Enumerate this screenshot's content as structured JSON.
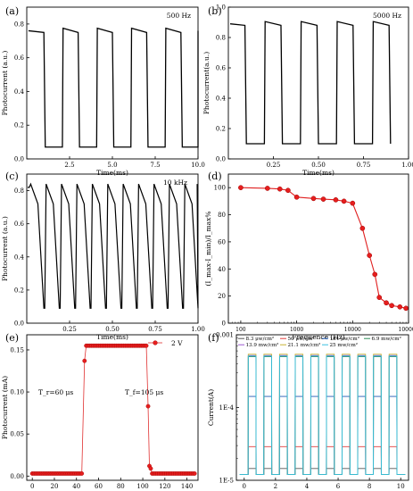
{
  "chart_data": [
    {
      "panel": "(a)",
      "type": "line",
      "annotation": "500  Hz",
      "xlabel": "Time(ms)",
      "ylabel": "Photocurrent (a.u.)",
      "xlim": [
        0,
        10
      ],
      "ylim": [
        0,
        0.9
      ],
      "xticks": [
        "2.5",
        "5.0",
        "7.5",
        "10.0"
      ],
      "yticks": [
        "0.0",
        "0.2",
        "0.4",
        "0.6",
        "0.8"
      ],
      "square_wave": {
        "high": 0.76,
        "low": 0.07,
        "on_intervals": [
          [
            0,
            1.08
          ],
          [
            2.08,
            3.08
          ],
          [
            4.08,
            5.08
          ],
          [
            6.08,
            7.08
          ],
          [
            8.08,
            9.08
          ],
          [
            10.08,
            10
          ]
        ]
      }
    },
    {
      "panel": "(b)",
      "type": "line",
      "annotation": "5000  Hz",
      "xlabel": "Time(ms)",
      "ylabel": "Photocurrent(a.u.)",
      "xlim": [
        0,
        1
      ],
      "ylim": [
        0,
        1.0
      ],
      "xticks": [
        "0.25",
        "0.50",
        "0.75",
        "1.00"
      ],
      "yticks": [
        "0.0",
        "0.2",
        "0.4",
        "0.6",
        "0.8",
        "1.0"
      ],
      "square_wave": {
        "high": 0.89,
        "low": 0.1,
        "on_intervals": [
          [
            0.015,
            0.1
          ],
          [
            0.2,
            0.3
          ],
          [
            0.4,
            0.5
          ],
          [
            0.6,
            0.7
          ],
          [
            0.8,
            0.9
          ]
        ]
      }
    },
    {
      "panel": "(c)",
      "type": "line",
      "annotation": "10  kHz",
      "xlabel": "Time(ms)",
      "ylabel": "Photocurrent (a.u.)",
      "xlim": [
        0,
        1
      ],
      "ylim": [
        0,
        0.9
      ],
      "xticks": [
        "0.25",
        "0.50",
        "0.75",
        "1.00"
      ],
      "yticks": [
        "0.0",
        "0.2",
        "0.4",
        "0.6",
        "0.8"
      ],
      "pulse_starts": [
        0.015,
        0.105,
        0.195,
        0.285,
        0.375,
        0.465,
        0.555,
        0.645,
        0.735,
        0.825,
        0.915
      ],
      "pulse_peak": 0.84,
      "pulse_high_end": 0.72,
      "pulse_low": 0.09
    },
    {
      "panel": "(d)",
      "type": "scatter",
      "xlabel": "Frequence  (Hz)",
      "ylabel": "(I_max-I_min)/I_max%",
      "xscale": "log",
      "xlim": [
        60,
        100000
      ],
      "ylim": [
        0,
        110
      ],
      "xticks": [
        "100",
        "1000",
        "10000",
        "100000"
      ],
      "yticks": [
        "0",
        "20",
        "40",
        "60",
        "80",
        "100"
      ],
      "x": [
        100,
        300,
        500,
        700,
        1000,
        2000,
        3000,
        5000,
        7000,
        10000,
        15000,
        20000,
        25000,
        30000,
        40000,
        50000,
        70000,
        90000
      ],
      "y": [
        100,
        99.5,
        99,
        98,
        93,
        92,
        91.5,
        91,
        90,
        88.5,
        70,
        50,
        36,
        19,
        15,
        13,
        12,
        11
      ]
    },
    {
      "panel": "(e)",
      "type": "scatter",
      "xlabel": "Time  (ms)",
      "ylabel": "Photocurrent  (mA)",
      "legend": "2  V",
      "legend_position": "top-right",
      "xlim": [
        -5,
        150
      ],
      "ylim": [
        -0.005,
        0.168
      ],
      "xticks": [
        "0",
        "20",
        "40",
        "60",
        "80",
        "100",
        "120",
        "140"
      ],
      "yticks": [
        "0.00",
        "0.05",
        "0.10",
        "0.15"
      ],
      "annotations": [
        "T_r=60 μs",
        "T_f=105 μs"
      ],
      "segments": [
        {
          "x_from": 0,
          "x_to": 46,
          "step": 1.6,
          "y": 0.003
        },
        {
          "x": [
            47.3
          ],
          "y": [
            0.137
          ]
        },
        {
          "x_from": 48.8,
          "x_to": 103.5,
          "step": 1.6,
          "y": 0.155
        },
        {
          "x": [
            104.8,
            106.0,
            107.2
          ],
          "y": [
            0.083,
            0.012,
            0.009
          ]
        },
        {
          "x_from": 108.5,
          "x_to": 147,
          "step": 1.6,
          "y": 0.003
        }
      ]
    },
    {
      "panel": "(f)",
      "type": "line",
      "xlabel": "Time(s)",
      "ylabel": "Current(A)",
      "yscale": "log",
      "xlim": [
        -0.5,
        10.5
      ],
      "ylim": [
        1e-05,
        0.001
      ],
      "xticks": [
        "0",
        "2",
        "4",
        "6",
        "8",
        "10"
      ],
      "yticks": [
        "1E-5",
        "1E-4",
        "0.001"
      ],
      "legend": [
        "8.3  μw/cm²",
        "50  μw/cm²",
        "184  μw/cm²",
        "6.9  mw/cm²",
        "13.9  mw/cm²",
        "21.1  mw/cm²",
        "25  mw/cm²"
      ],
      "legend_position": "top",
      "on_intervals": [
        [
          0.25,
          0.75
        ],
        [
          1.25,
          1.75
        ],
        [
          2.25,
          2.75
        ],
        [
          3.25,
          3.75
        ],
        [
          4.25,
          4.75
        ],
        [
          5.25,
          5.75
        ],
        [
          6.25,
          6.75
        ],
        [
          7.25,
          7.75
        ],
        [
          8.25,
          8.75
        ],
        [
          9.25,
          9.75
        ]
      ],
      "series": [
        {
          "name": "8.3  μw/cm²",
          "color": "#555555",
          "off": 1.2e-05,
          "on": 1.45e-05
        },
        {
          "name": "50  μw/cm²",
          "color": "#e03c3c",
          "off": 1.2e-05,
          "on": 2.9e-05
        },
        {
          "name": "184  μw/cm²",
          "color": "#1e5ab4",
          "off": 1.2e-05,
          "on": 0.000142
        },
        {
          "name": "6.9  mw/cm²",
          "color": "#2e8b57",
          "off": 1.2e-05,
          "on": 0.0005
        },
        {
          "name": "13.9  mw/cm²",
          "color": "#9b59d0",
          "off": 1.2e-05,
          "on": 0.00052
        },
        {
          "name": "21.1  mw/cm²",
          "color": "#c8b432",
          "off": 1.2e-05,
          "on": 0.00054
        },
        {
          "name": "25  mw/cm²",
          "color": "#38c0e0",
          "off": 1.2e-05,
          "on": 0.00051
        }
      ]
    }
  ]
}
